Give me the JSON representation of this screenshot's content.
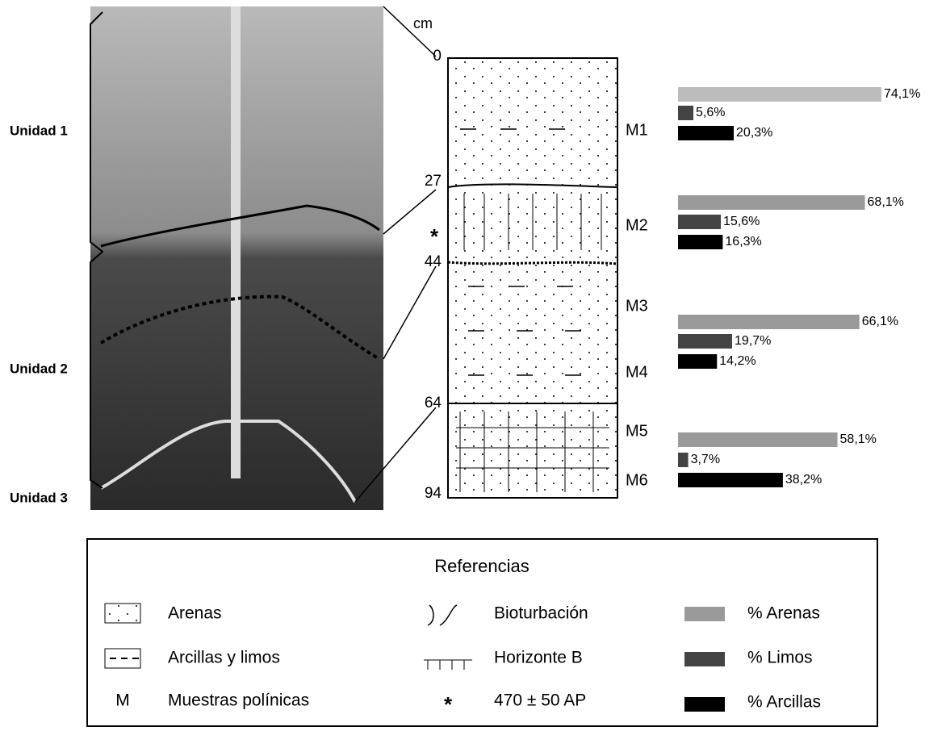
{
  "photo": {
    "units": [
      "Unidad 1",
      "Unidad 2",
      "Unidad 3"
    ]
  },
  "column": {
    "unit": "cm",
    "depths": [
      "0",
      "27",
      "44",
      "64",
      "94"
    ],
    "dating_mark": "*",
    "samples": [
      "M1",
      "M2",
      "M3",
      "M4",
      "M5",
      "M6"
    ]
  },
  "chart_data": {
    "type": "bar",
    "xlim": [
      0,
      100
    ],
    "series": [
      {
        "name": "% Arenas",
        "color": "#9a9a9a"
      },
      {
        "name": "% Limos",
        "color": "#444444"
      },
      {
        "name": "% Arcillas",
        "color": "#000000"
      }
    ],
    "groups": [
      {
        "values": [
          74.1,
          5.6,
          20.3
        ],
        "value_labels": [
          "74,1%",
          "5,6%",
          "20,3%"
        ]
      },
      {
        "values": [
          68.1,
          15.6,
          16.3
        ],
        "value_labels": [
          "68,1%",
          "15,6%",
          "16,3%"
        ]
      },
      {
        "values": [
          66.1,
          19.7,
          14.2
        ],
        "value_labels": [
          "66,1%",
          "19,7%",
          "14,2%"
        ]
      },
      {
        "values": [
          58.1,
          3.7,
          38.2
        ],
        "value_labels": [
          "58,1%",
          "3,7%",
          "38,2%"
        ]
      }
    ]
  },
  "legend": {
    "title": "Referencias",
    "items": [
      "Arenas",
      "Arcillas y limos",
      "Muestras polínicas",
      "Bioturbación",
      "Horizonte B",
      "470 ± 50 AP"
    ],
    "symbol_m": "M",
    "symbol_star": "*"
  }
}
